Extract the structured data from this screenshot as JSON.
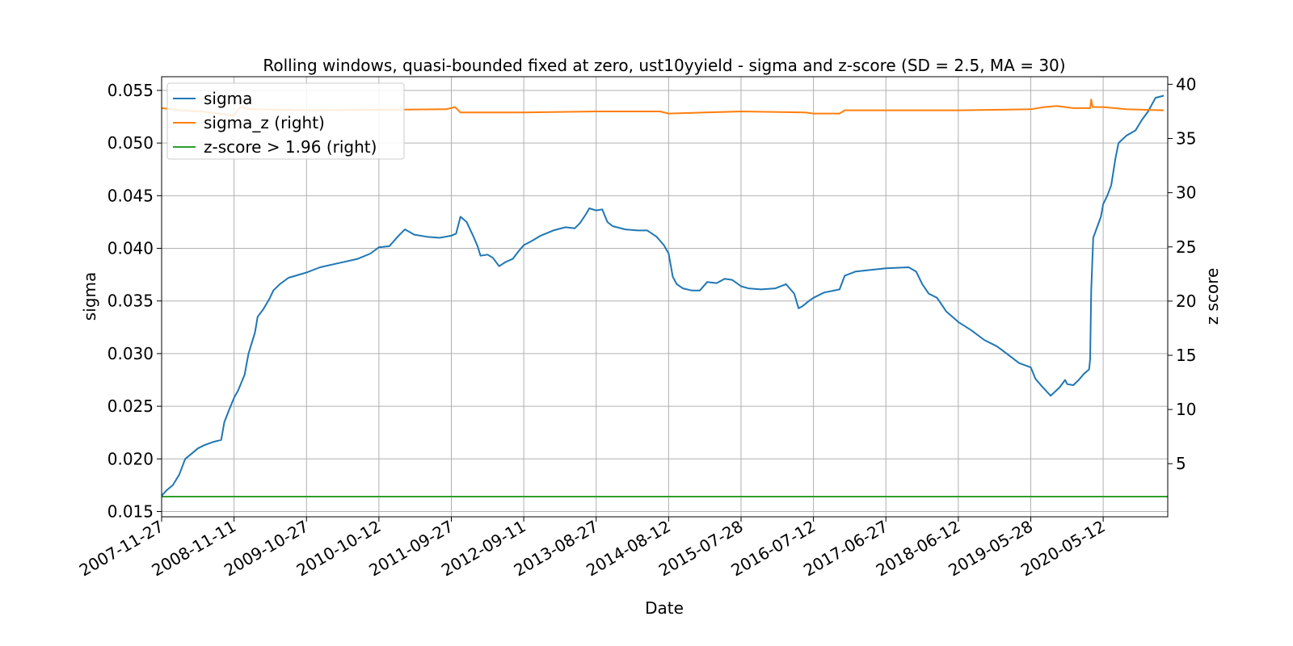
{
  "chart_data": {
    "type": "line",
    "title": "Rolling windows, quasi-bounded fixed at zero, ust10yyield - sigma and z-score (SD = 2.5, MA = 30)",
    "xlabel": "Date",
    "ylabel": "sigma",
    "y2label": "z score",
    "x_range": [
      "2007-11-27",
      "2021-03-20"
    ],
    "ylim": [
      0.0145,
      0.0563
    ],
    "y2lim": [
      0.1,
      40.7
    ],
    "grid": true,
    "legend_position": "upper-left",
    "x_ticks": [
      "2007-11-27",
      "2008-11-11",
      "2009-10-27",
      "2010-10-12",
      "2011-09-27",
      "2012-09-11",
      "2013-08-27",
      "2014-08-12",
      "2015-07-28",
      "2016-07-12",
      "2017-06-27",
      "2018-06-12",
      "2019-05-28",
      "2020-05-12"
    ],
    "y_ticks": [
      "0.015",
      "0.020",
      "0.025",
      "0.030",
      "0.035",
      "0.040",
      "0.045",
      "0.050",
      "0.055"
    ],
    "y2_ticks": [
      "5",
      "10",
      "15",
      "20",
      "25",
      "30",
      "35",
      "40"
    ],
    "series": [
      {
        "name": "sigma",
        "axis": "left",
        "color": "#1f77b4",
        "points": [
          [
            "2007-11-27",
            0.0165
          ],
          [
            "2007-12-20",
            0.017
          ],
          [
            "2008-01-20",
            0.0175
          ],
          [
            "2008-02-20",
            0.0185
          ],
          [
            "2008-03-20",
            0.02
          ],
          [
            "2008-04-20",
            0.0205
          ],
          [
            "2008-05-20",
            0.021
          ],
          [
            "2008-06-20",
            0.0213
          ],
          [
            "2008-08-01",
            0.0216
          ],
          [
            "2008-09-10",
            0.0218
          ],
          [
            "2008-09-25",
            0.0235
          ],
          [
            "2008-10-15",
            0.0245
          ],
          [
            "2008-11-11",
            0.0258
          ],
          [
            "2008-12-01",
            0.0265
          ],
          [
            "2009-01-01",
            0.028
          ],
          [
            "2009-01-20",
            0.03
          ],
          [
            "2009-02-20",
            0.032
          ],
          [
            "2009-03-05",
            0.0335
          ],
          [
            "2009-04-01",
            0.0342
          ],
          [
            "2009-05-01",
            0.0352
          ],
          [
            "2009-05-20",
            0.036
          ],
          [
            "2009-06-20",
            0.0366
          ],
          [
            "2009-08-01",
            0.0372
          ],
          [
            "2009-10-27",
            0.0377
          ],
          [
            "2010-01-01",
            0.0382
          ],
          [
            "2010-04-01",
            0.0386
          ],
          [
            "2010-07-01",
            0.039
          ],
          [
            "2010-09-01",
            0.0395
          ],
          [
            "2010-10-12",
            0.0401
          ],
          [
            "2010-12-01",
            0.0402
          ],
          [
            "2011-01-15",
            0.0412
          ],
          [
            "2011-02-15",
            0.0418
          ],
          [
            "2011-04-01",
            0.0413
          ],
          [
            "2011-06-01",
            0.0411
          ],
          [
            "2011-08-01",
            0.041
          ],
          [
            "2011-09-27",
            0.0412
          ],
          [
            "2011-10-20",
            0.0414
          ],
          [
            "2011-11-10",
            0.043
          ],
          [
            "2011-12-10",
            0.0425
          ],
          [
            "2012-01-10",
            0.0412
          ],
          [
            "2012-02-01",
            0.0402
          ],
          [
            "2012-02-15",
            0.0393
          ],
          [
            "2012-03-20",
            0.0394
          ],
          [
            "2012-04-15",
            0.0391
          ],
          [
            "2012-05-15",
            0.0383
          ],
          [
            "2012-06-15",
            0.0387
          ],
          [
            "2012-07-20",
            0.039
          ],
          [
            "2012-08-20",
            0.0398
          ],
          [
            "2012-09-11",
            0.0403
          ],
          [
            "2012-10-20",
            0.0407
          ],
          [
            "2012-12-01",
            0.0412
          ],
          [
            "2013-02-01",
            0.0417
          ],
          [
            "2013-04-01",
            0.042
          ],
          [
            "2013-05-15",
            0.0419
          ],
          [
            "2013-06-10",
            0.0424
          ],
          [
            "2013-07-10",
            0.0433
          ],
          [
            "2013-07-25",
            0.0438
          ],
          [
            "2013-08-27",
            0.0436
          ],
          [
            "2013-09-25",
            0.0437
          ],
          [
            "2013-10-20",
            0.0425
          ],
          [
            "2013-11-15",
            0.0421
          ],
          [
            "2014-01-15",
            0.0418
          ],
          [
            "2014-03-15",
            0.0417
          ],
          [
            "2014-05-01",
            0.0417
          ],
          [
            "2014-06-15",
            0.0411
          ],
          [
            "2014-07-20",
            0.0403
          ],
          [
            "2014-08-12",
            0.0395
          ],
          [
            "2014-09-01",
            0.0373
          ],
          [
            "2014-09-20",
            0.0366
          ],
          [
            "2014-10-20",
            0.0362
          ],
          [
            "2014-12-01",
            0.036
          ],
          [
            "2015-01-10",
            0.036
          ],
          [
            "2015-02-15",
            0.0368
          ],
          [
            "2015-04-01",
            0.0367
          ],
          [
            "2015-05-10",
            0.0371
          ],
          [
            "2015-06-15",
            0.037
          ],
          [
            "2015-07-28",
            0.0364
          ],
          [
            "2015-09-01",
            0.0362
          ],
          [
            "2015-11-01",
            0.0361
          ],
          [
            "2016-01-10",
            0.0362
          ],
          [
            "2016-03-01",
            0.0366
          ],
          [
            "2016-04-10",
            0.0357
          ],
          [
            "2016-05-01",
            0.0343
          ],
          [
            "2016-05-20",
            0.0345
          ],
          [
            "2016-06-20",
            0.035
          ],
          [
            "2016-07-12",
            0.0353
          ],
          [
            "2016-09-01",
            0.0358
          ],
          [
            "2016-11-15",
            0.0361
          ],
          [
            "2016-12-10",
            0.0374
          ],
          [
            "2017-02-01",
            0.0378
          ],
          [
            "2017-06-27",
            0.0381
          ],
          [
            "2017-10-15",
            0.0382
          ],
          [
            "2017-11-20",
            0.0378
          ],
          [
            "2017-12-20",
            0.0366
          ],
          [
            "2018-01-20",
            0.0357
          ],
          [
            "2018-03-01",
            0.0353
          ],
          [
            "2018-04-15",
            0.034
          ],
          [
            "2018-06-12",
            0.033
          ],
          [
            "2018-08-15",
            0.0322
          ],
          [
            "2018-10-15",
            0.0313
          ],
          [
            "2018-12-15",
            0.0307
          ],
          [
            "2019-02-01",
            0.03
          ],
          [
            "2019-04-01",
            0.0291
          ],
          [
            "2019-05-28",
            0.0287
          ],
          [
            "2019-06-20",
            0.0276
          ],
          [
            "2019-07-25",
            0.0268
          ],
          [
            "2019-09-01",
            0.026
          ],
          [
            "2019-10-15",
            0.0268
          ],
          [
            "2019-11-10",
            0.0275
          ],
          [
            "2019-11-20",
            0.0271
          ],
          [
            "2019-12-20",
            0.027
          ],
          [
            "2020-01-15",
            0.0275
          ],
          [
            "2020-02-10",
            0.0281
          ],
          [
            "2020-03-05",
            0.0285
          ],
          [
            "2020-03-10",
            0.0295
          ],
          [
            "2020-03-15",
            0.036
          ],
          [
            "2020-03-25",
            0.041
          ],
          [
            "2020-05-01",
            0.043
          ],
          [
            "2020-05-12",
            0.0442
          ],
          [
            "2020-06-01",
            0.045
          ],
          [
            "2020-06-20",
            0.046
          ],
          [
            "2020-07-10",
            0.0485
          ],
          [
            "2020-07-25",
            0.05
          ],
          [
            "2020-09-01",
            0.0507
          ],
          [
            "2020-10-15",
            0.0512
          ],
          [
            "2020-11-15",
            0.0522
          ],
          [
            "2020-12-15",
            0.053
          ],
          [
            "2021-01-20",
            0.0543
          ],
          [
            "2021-03-01",
            0.0545
          ]
        ]
      },
      {
        "name": "sigma_z (right)",
        "axis": "right",
        "color": "#ff7f0e",
        "points": [
          [
            "2007-11-27",
            37.8
          ],
          [
            "2008-03-01",
            37.6
          ],
          [
            "2008-06-01",
            37.5
          ],
          [
            "2008-09-01",
            37.3
          ],
          [
            "2008-11-11",
            37.1
          ],
          [
            "2008-12-10",
            37.9
          ],
          [
            "2009-02-01",
            37.7
          ],
          [
            "2009-10-27",
            37.6
          ],
          [
            "2011-09-01",
            37.7
          ],
          [
            "2011-10-15",
            37.9
          ],
          [
            "2011-11-10",
            37.4
          ],
          [
            "2012-09-11",
            37.4
          ],
          [
            "2013-08-27",
            37.5
          ],
          [
            "2014-07-01",
            37.5
          ],
          [
            "2014-08-12",
            37.3
          ],
          [
            "2015-07-28",
            37.5
          ],
          [
            "2016-06-01",
            37.4
          ],
          [
            "2016-07-12",
            37.3
          ],
          [
            "2016-11-15",
            37.3
          ],
          [
            "2016-12-10",
            37.6
          ],
          [
            "2017-06-27",
            37.6
          ],
          [
            "2018-06-12",
            37.6
          ],
          [
            "2019-05-28",
            37.7
          ],
          [
            "2019-08-01",
            37.9
          ],
          [
            "2019-10-01",
            38.0
          ],
          [
            "2019-12-20",
            37.8
          ],
          [
            "2020-03-10",
            37.8
          ],
          [
            "2020-03-15",
            38.6
          ],
          [
            "2020-03-22",
            37.9
          ],
          [
            "2020-05-12",
            37.9
          ],
          [
            "2020-09-01",
            37.7
          ],
          [
            "2021-03-01",
            37.6
          ]
        ]
      },
      {
        "name": "z-score > 1.96 (right)",
        "axis": "right",
        "color": "#2ca02c",
        "points": [
          [
            "2007-11-27",
            1.96
          ],
          [
            "2021-03-20",
            1.96
          ]
        ]
      }
    ]
  }
}
